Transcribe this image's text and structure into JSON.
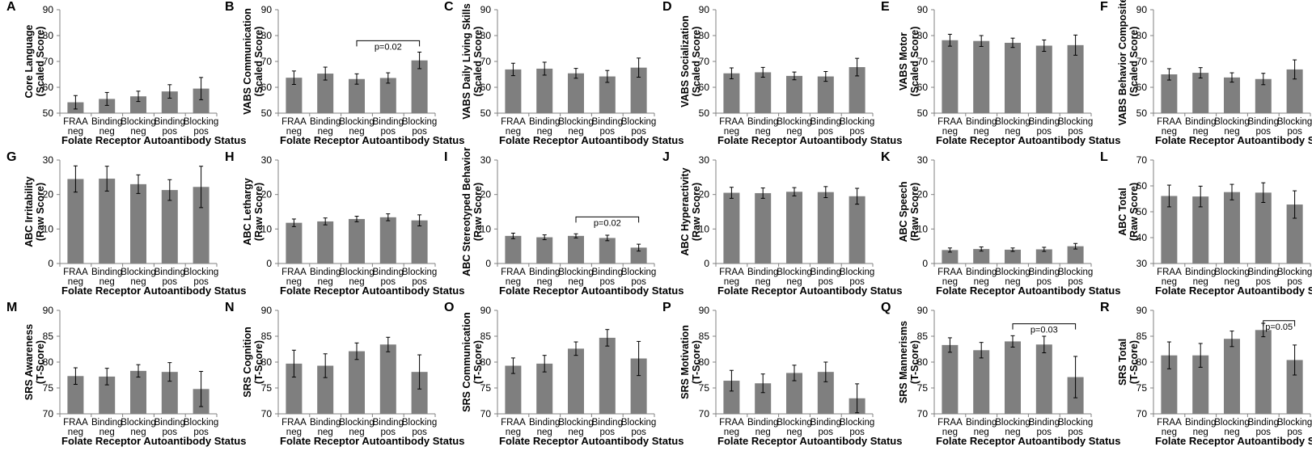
{
  "figure": {
    "x_title": "Folate Receptor Autoantibody Status",
    "categories": [
      [
        "FRAA",
        "neg"
      ],
      [
        "Binding",
        "neg"
      ],
      [
        "Blocking",
        "neg"
      ],
      [
        "Binding",
        "pos"
      ],
      [
        "Blocking",
        "pos"
      ]
    ],
    "bar_color": "#7f7f7f",
    "axis_color": "#808080",
    "bracket_color": "#000000"
  },
  "chart_data": [
    {
      "id": "A",
      "type": "bar",
      "ylabel": "Core Language\n(Scaled Score)",
      "ylim": [
        50,
        90
      ],
      "yticks": [
        50,
        60,
        70,
        80,
        90
      ],
      "values": [
        54.2,
        55.5,
        56.5,
        58.4,
        59.5
      ],
      "errors": [
        2.6,
        2.5,
        2,
        2.6,
        4.3
      ],
      "bracket": null
    },
    {
      "id": "B",
      "type": "bar",
      "ylabel": "VABS Communication\n(Scaled Score)",
      "ylim": [
        50,
        90
      ],
      "yticks": [
        50,
        60,
        70,
        80,
        90
      ],
      "values": [
        63.7,
        65.3,
        63.2,
        63.6,
        70.4
      ],
      "errors": [
        2.6,
        2.5,
        2,
        2,
        3.2
      ],
      "bracket": {
        "from": 2,
        "to": 4,
        "label": "p=0.02",
        "y": 78
      }
    },
    {
      "id": "C",
      "type": "bar",
      "ylabel": "VABS Daily Living Skills\n(Scaled Score)",
      "ylim": [
        50,
        90
      ],
      "yticks": [
        50,
        60,
        70,
        80,
        90
      ],
      "values": [
        66.9,
        67.2,
        65.4,
        64.2,
        67.6
      ],
      "errors": [
        2.4,
        2.5,
        1.9,
        2.3,
        3.7
      ],
      "bracket": null
    },
    {
      "id": "D",
      "type": "bar",
      "ylabel": "VABS Socialization\n(Scaled Score)",
      "ylim": [
        50,
        90
      ],
      "yticks": [
        50,
        60,
        70,
        80,
        90
      ],
      "values": [
        65.4,
        65.8,
        64.4,
        64.2,
        67.8
      ],
      "errors": [
        2.1,
        1.9,
        1.5,
        1.9,
        3.4
      ],
      "bracket": null
    },
    {
      "id": "E",
      "type": "bar",
      "ylabel": "VABS Motor\n(Scaled Score)",
      "ylim": [
        50,
        90
      ],
      "yticks": [
        50,
        60,
        70,
        80,
        90
      ],
      "values": [
        78.2,
        77.9,
        77.2,
        76.1,
        76.3
      ],
      "errors": [
        2.3,
        2.1,
        1.8,
        2.2,
        3.9
      ],
      "bracket": null
    },
    {
      "id": "F",
      "type": "bar",
      "ylabel": "VABS Behavior Composite\n(Scaled Score)",
      "ylim": [
        50,
        90
      ],
      "yticks": [
        50,
        60,
        70,
        80,
        90
      ],
      "values": [
        65,
        65.6,
        63.8,
        63.2,
        66.9
      ],
      "errors": [
        2.2,
        2,
        1.8,
        2.2,
        3.7
      ],
      "bracket": null
    },
    {
      "id": "G",
      "type": "bar",
      "ylabel": "ABC Irritability\n(Raw Score)",
      "ylim": [
        0,
        30
      ],
      "yticks": [
        0,
        10,
        20,
        30
      ],
      "values": [
        24.5,
        24.6,
        23,
        21.3,
        22.2
      ],
      "errors": [
        3.8,
        3.6,
        2.7,
        3,
        6
      ],
      "bracket": null
    },
    {
      "id": "H",
      "type": "bar",
      "ylabel": "ABC Lethargy\n(Raw Score)",
      "ylim": [
        0,
        30
      ],
      "yticks": [
        0,
        10,
        20,
        30
      ],
      "values": [
        11.8,
        12.2,
        12.9,
        13.4,
        12.5
      ],
      "errors": [
        1.1,
        1,
        0.8,
        1,
        1.6
      ],
      "bracket": null
    },
    {
      "id": "I",
      "type": "bar",
      "ylabel": "ABC Stereotyped Behavior\n(Raw Score)",
      "ylim": [
        0,
        30
      ],
      "yticks": [
        0,
        10,
        20,
        30
      ],
      "values": [
        8,
        7.6,
        8,
        7.4,
        4.6
      ],
      "errors": [
        0.8,
        0.7,
        0.6,
        0.8,
        1
      ],
      "bracket": {
        "from": 2,
        "to": 4,
        "label": "p=0.02",
        "y": 13.5
      }
    },
    {
      "id": "J",
      "type": "bar",
      "ylabel": "ABC Hyperactivity\n(Raw Score)",
      "ylim": [
        0,
        30
      ],
      "yticks": [
        0,
        10,
        20,
        30
      ],
      "values": [
        20.5,
        20.4,
        20.8,
        20.7,
        19.5
      ],
      "errors": [
        1.6,
        1.5,
        1.2,
        1.6,
        2.3
      ],
      "bracket": null
    },
    {
      "id": "K",
      "type": "bar",
      "ylabel": "ABC Speech\n(Raw Score)",
      "ylim": [
        0,
        30
      ],
      "yticks": [
        0,
        10,
        20,
        30
      ],
      "values": [
        3.9,
        4.2,
        4,
        4.1,
        5
      ],
      "errors": [
        0.6,
        0.6,
        0.5,
        0.6,
        0.8
      ],
      "bracket": null
    },
    {
      "id": "L",
      "type": "bar",
      "ylabel": "ABC Total\n(Raw Score)",
      "ylim": [
        30,
        70
      ],
      "yticks": [
        30,
        40,
        50,
        60,
        70
      ],
      "values": [
        56.1,
        55.9,
        57.6,
        57.4,
        52.8
      ],
      "errors": [
        4.2,
        4,
        3,
        3.8,
        5.3
      ],
      "bracket": null
    },
    {
      "id": "M",
      "type": "bar",
      "ylabel": "SRS Awareness\n(T-Score)",
      "ylim": [
        70,
        90
      ],
      "yticks": [
        70,
        75,
        80,
        85,
        90
      ],
      "values": [
        77.3,
        77.2,
        78.3,
        78.1,
        74.8
      ],
      "errors": [
        1.6,
        1.6,
        1.2,
        1.8,
        3.4
      ],
      "bracket": null
    },
    {
      "id": "N",
      "type": "bar",
      "ylabel": "SRS Cognition\n(T-Score)",
      "ylim": [
        70,
        90
      ],
      "yticks": [
        70,
        75,
        80,
        85,
        90
      ],
      "values": [
        79.7,
        79.3,
        82.1,
        83.4,
        78.1
      ],
      "errors": [
        2.6,
        2.3,
        1.6,
        1.4,
        3.3
      ],
      "bracket": null
    },
    {
      "id": "O",
      "type": "bar",
      "ylabel": "SRS Communication\n(T-Score)",
      "ylim": [
        70,
        90
      ],
      "yticks": [
        70,
        75,
        80,
        85,
        90
      ],
      "values": [
        79.3,
        79.7,
        82.6,
        84.7,
        80.7
      ],
      "errors": [
        1.5,
        1.6,
        1.3,
        1.6,
        3.3
      ],
      "bracket": null
    },
    {
      "id": "P",
      "type": "bar",
      "ylabel": "SRS Motivation\n(T-Score)",
      "ylim": [
        70,
        90
      ],
      "yticks": [
        70,
        75,
        80,
        85,
        90
      ],
      "values": [
        76.4,
        75.9,
        77.9,
        78.1,
        73
      ],
      "errors": [
        2,
        1.8,
        1.5,
        1.9,
        2.8
      ],
      "bracket": null
    },
    {
      "id": "Q",
      "type": "bar",
      "ylabel": "SRS Mannerisms\n(T-Score)",
      "ylim": [
        70,
        90
      ],
      "yticks": [
        70,
        75,
        80,
        85,
        90
      ],
      "values": [
        83.3,
        82.3,
        84,
        83.4,
        77.1
      ],
      "errors": [
        1.4,
        1.5,
        1.1,
        1.6,
        4
      ],
      "bracket": {
        "from": 2,
        "to": 4,
        "label": "p=0.03",
        "y": 87.4
      }
    },
    {
      "id": "R",
      "type": "bar",
      "ylabel": "SRS Total\n(T-Score)",
      "ylim": [
        70,
        90
      ],
      "yticks": [
        70,
        75,
        80,
        85,
        90
      ],
      "values": [
        81.3,
        81.3,
        84.5,
        86.2,
        80.4
      ],
      "errors": [
        2.6,
        2.3,
        1.5,
        1.3,
        2.9
      ],
      "bracket": {
        "from": 3,
        "to": 4,
        "label": "p=0.05",
        "y": 88
      }
    }
  ]
}
